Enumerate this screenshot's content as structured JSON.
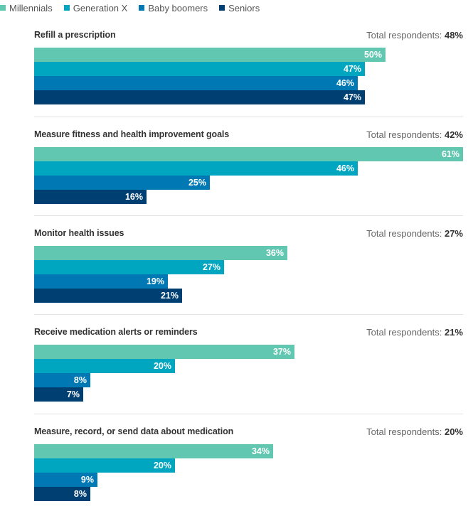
{
  "colors": {
    "millennials": "#62c7b0",
    "genx": "#00a5c0",
    "boomers": "#0078b4",
    "seniors": "#003f72"
  },
  "chart_data": {
    "type": "bar",
    "orientation": "horizontal",
    "xlim": [
      0,
      61
    ],
    "legend": [
      {
        "name": "Millennials",
        "color_key": "millennials"
      },
      {
        "name": "Generation X",
        "color_key": "genx"
      },
      {
        "name": "Baby boomers",
        "color_key": "boomers"
      },
      {
        "name": "Seniors",
        "color_key": "seniors"
      }
    ],
    "total_label": "Total respondents:",
    "groups": [
      {
        "title": "Refill a prescription",
        "total": "48%",
        "values": [
          50,
          47,
          46,
          47
        ]
      },
      {
        "title": "Measure fitness and health improvement goals",
        "total": "42%",
        "values": [
          61,
          46,
          25,
          16
        ]
      },
      {
        "title": "Monitor health issues",
        "total": "27%",
        "values": [
          36,
          27,
          19,
          21
        ]
      },
      {
        "title": "Receive medication alerts or reminders",
        "total": "21%",
        "values": [
          37,
          20,
          8,
          7
        ]
      },
      {
        "title": "Measure, record, or send data about medication",
        "total": "20%",
        "values": [
          34,
          20,
          9,
          8
        ]
      }
    ]
  }
}
